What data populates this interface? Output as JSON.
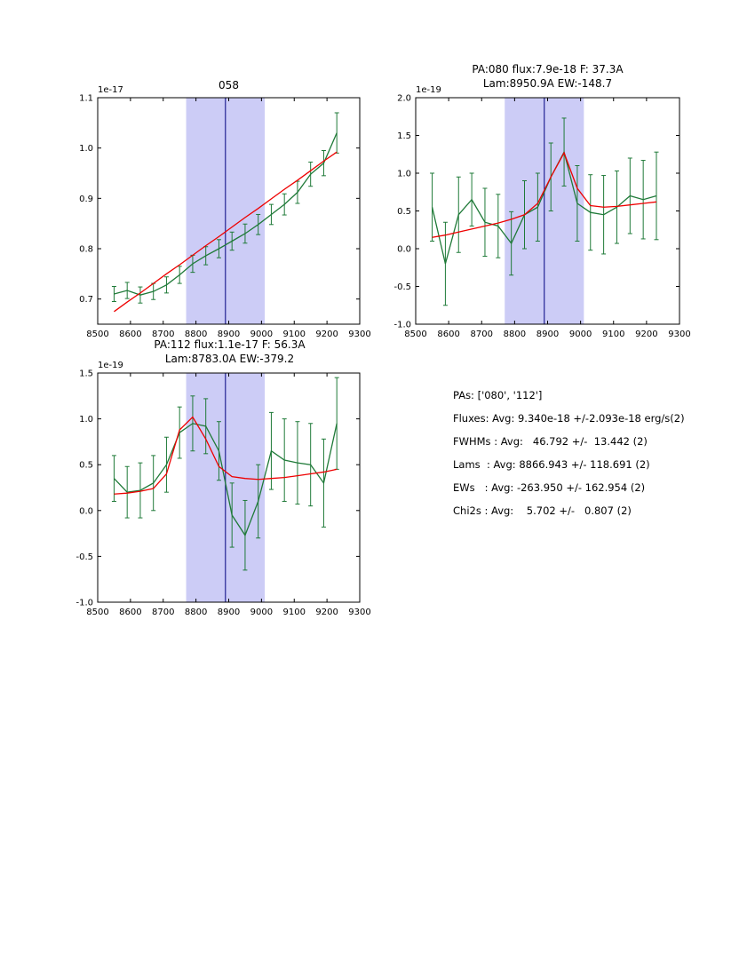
{
  "figure": {
    "background": "#ffffff"
  },
  "colors": {
    "spectrum_line": "#1f7a38",
    "fit_line": "#ee0000",
    "band_fill": "#9999ee",
    "center_line": "#000080",
    "axes": "#000000"
  },
  "text_panel": {
    "lines": [
      "PAs: ['080', '112']",
      "Fluxes: Avg: 9.340e-18 +/-2.093e-18 erg/s(2)",
      "FWHMs : Avg:   46.792 +/-  13.442 (2)",
      "Lams  : Avg: 8866.943 +/- 118.691 (2)",
      "EWs   : Avg: -263.950 +/- 162.954 (2)",
      "Chi2s : Avg:    5.702 +/-   0.807 (2)"
    ]
  },
  "chart_data": [
    {
      "type": "line",
      "title": "058",
      "title2": "",
      "offset_label": "1e-17",
      "xlabel": "",
      "ylabel": "",
      "xlim": [
        8500,
        9300
      ],
      "ylim": [
        0.65,
        1.1
      ],
      "xticks": [
        8500,
        8600,
        8700,
        8800,
        8900,
        9000,
        9100,
        9200,
        9300
      ],
      "xtick_labels": [
        "8500",
        "8600",
        "8700",
        "8800",
        "8900",
        "9000",
        "9100",
        "9200",
        "9300"
      ],
      "yticks": [
        0.7,
        0.8,
        0.9,
        1.0,
        1.1
      ],
      "ytick_labels": [
        "0.7",
        "0.8",
        "0.9",
        "1.0",
        "1.1"
      ],
      "band": {
        "from": 8770,
        "to": 9010,
        "color": "#9999ee"
      },
      "vline": {
        "x": 8890,
        "color": "#000080"
      },
      "x": [
        8550,
        8590,
        8630,
        8670,
        8710,
        8750,
        8790,
        8830,
        8870,
        8910,
        8950,
        8990,
        9030,
        9070,
        9110,
        9150,
        9190,
        9230
      ],
      "series": [
        {
          "name": "spectrum",
          "color": "#1f7a38",
          "values": [
            0.71,
            0.717,
            0.708,
            0.715,
            0.728,
            0.748,
            0.77,
            0.786,
            0.8,
            0.815,
            0.83,
            0.848,
            0.868,
            0.888,
            0.912,
            0.948,
            0.97,
            1.03
          ],
          "errors": [
            0.015,
            0.016,
            0.016,
            0.016,
            0.016,
            0.017,
            0.017,
            0.018,
            0.018,
            0.018,
            0.019,
            0.02,
            0.02,
            0.021,
            0.022,
            0.024,
            0.025,
            0.04
          ]
        },
        {
          "name": "fit",
          "color": "#ee0000",
          "values": [
            0.675,
            0.694,
            0.712,
            0.731,
            0.75,
            0.768,
            0.787,
            0.806,
            0.824,
            0.843,
            0.862,
            0.88,
            0.899,
            0.918,
            0.936,
            0.955,
            0.974,
            0.992
          ]
        }
      ]
    },
    {
      "type": "line",
      "title": "PA:080 flux:7.9e-18 F: 37.3A",
      "title2": "Lam:8950.9A EW:-148.7",
      "offset_label": "1e-19",
      "xlabel": "",
      "ylabel": "",
      "xlim": [
        8500,
        9300
      ],
      "ylim": [
        -1.0,
        2.0
      ],
      "xticks": [
        8500,
        8600,
        8700,
        8800,
        8900,
        9000,
        9100,
        9200,
        9300
      ],
      "xtick_labels": [
        "8500",
        "8600",
        "8700",
        "8800",
        "8900",
        "9000",
        "9100",
        "9200",
        "9300"
      ],
      "yticks": [
        -1.0,
        -0.5,
        0.0,
        0.5,
        1.0,
        1.5,
        2.0
      ],
      "ytick_labels": [
        "-1.0",
        "-0.5",
        "0.0",
        "0.5",
        "1.0",
        "1.5",
        "2.0"
      ],
      "band": {
        "from": 8770,
        "to": 9010,
        "color": "#9999ee"
      },
      "vline": {
        "x": 8890,
        "color": "#000080"
      },
      "x": [
        8550,
        8590,
        8630,
        8670,
        8710,
        8750,
        8790,
        8830,
        8870,
        8910,
        8950,
        8990,
        9030,
        9070,
        9110,
        9150,
        9190,
        9230
      ],
      "series": [
        {
          "name": "spectrum",
          "color": "#1f7a38",
          "values": [
            0.55,
            -0.2,
            0.45,
            0.65,
            0.35,
            0.3,
            0.07,
            0.45,
            0.55,
            0.95,
            1.28,
            0.6,
            0.48,
            0.45,
            0.55,
            0.7,
            0.65,
            0.7
          ],
          "errors": [
            0.45,
            0.55,
            0.5,
            0.35,
            0.45,
            0.42,
            0.42,
            0.45,
            0.45,
            0.45,
            0.45,
            0.5,
            0.5,
            0.52,
            0.48,
            0.5,
            0.52,
            0.58
          ]
        },
        {
          "name": "fit",
          "color": "#ee0000",
          "values": [
            0.15,
            0.18,
            0.22,
            0.26,
            0.3,
            0.34,
            0.39,
            0.45,
            0.6,
            0.95,
            1.27,
            0.8,
            0.57,
            0.55,
            0.56,
            0.58,
            0.6,
            0.62
          ]
        }
      ]
    },
    {
      "type": "line",
      "title": "PA:112 flux:1.1e-17 F: 56.3A",
      "title2": "Lam:8783.0A EW:-379.2",
      "offset_label": "1e-19",
      "xlabel": "",
      "ylabel": "",
      "xlim": [
        8500,
        9300
      ],
      "ylim": [
        -1.0,
        1.5
      ],
      "xticks": [
        8500,
        8600,
        8700,
        8800,
        8900,
        9000,
        9100,
        9200,
        9300
      ],
      "xtick_labels": [
        "8500",
        "8600",
        "8700",
        "8800",
        "8900",
        "9000",
        "9100",
        "9200",
        "9300"
      ],
      "yticks": [
        -1.0,
        -0.5,
        0.0,
        0.5,
        1.0,
        1.5
      ],
      "ytick_labels": [
        "-1.0",
        "-0.5",
        "0.0",
        "0.5",
        "1.0",
        "1.5"
      ],
      "band": {
        "from": 8770,
        "to": 9010,
        "color": "#9999ee"
      },
      "vline": {
        "x": 8890,
        "color": "#000080"
      },
      "x": [
        8550,
        8590,
        8630,
        8670,
        8710,
        8750,
        8790,
        8830,
        8870,
        8910,
        8950,
        8990,
        9030,
        9070,
        9110,
        9150,
        9190,
        9230
      ],
      "series": [
        {
          "name": "spectrum",
          "color": "#1f7a38",
          "values": [
            0.35,
            0.2,
            0.22,
            0.3,
            0.5,
            0.85,
            0.95,
            0.92,
            0.65,
            -0.05,
            -0.27,
            0.1,
            0.65,
            0.55,
            0.52,
            0.5,
            0.3,
            0.95
          ],
          "errors": [
            0.25,
            0.28,
            0.3,
            0.3,
            0.3,
            0.28,
            0.3,
            0.3,
            0.32,
            0.35,
            0.38,
            0.4,
            0.42,
            0.45,
            0.45,
            0.45,
            0.48,
            0.5
          ]
        },
        {
          "name": "fit",
          "color": "#ee0000",
          "values": [
            0.18,
            0.19,
            0.21,
            0.24,
            0.4,
            0.88,
            1.02,
            0.78,
            0.48,
            0.37,
            0.35,
            0.34,
            0.35,
            0.36,
            0.38,
            0.4,
            0.42,
            0.45
          ]
        }
      ]
    }
  ]
}
